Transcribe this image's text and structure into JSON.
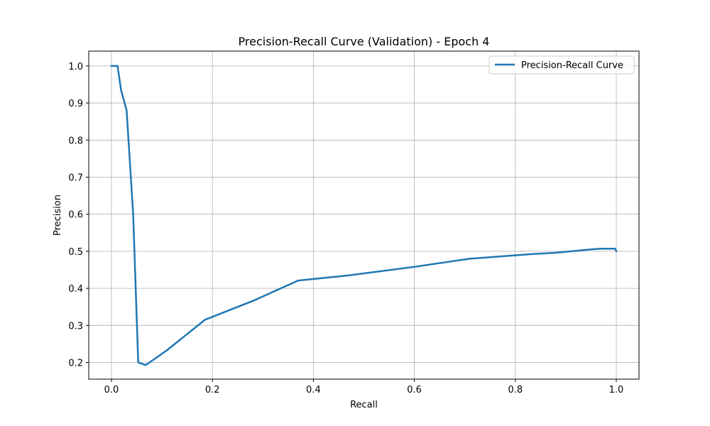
{
  "chart_data": {
    "type": "line",
    "title": "Precision-Recall Curve (Validation) - Epoch 4",
    "xlabel": "Recall",
    "ylabel": "Precision",
    "xlim": [
      -0.045,
      1.045
    ],
    "ylim": [
      0.155,
      1.04
    ],
    "x_ticks": [
      0.0,
      0.2,
      0.4,
      0.6,
      0.8,
      1.0
    ],
    "x_tick_labels": [
      "0.0",
      "0.2",
      "0.4",
      "0.6",
      "0.8",
      "1.0"
    ],
    "y_ticks": [
      0.2,
      0.3,
      0.4,
      0.5,
      0.6,
      0.7,
      0.8,
      0.9,
      1.0
    ],
    "y_tick_labels": [
      "0.2",
      "0.3",
      "0.4",
      "0.5",
      "0.6",
      "0.7",
      "0.8",
      "0.9",
      "1.0"
    ],
    "grid": true,
    "legend_position": "top-right",
    "series": [
      {
        "name": "Precision-Recall Curve",
        "color": "#1f77b4",
        "points": [
          [
            0.0,
            1.0
          ],
          [
            0.012,
            1.0
          ],
          [
            0.019,
            0.935
          ],
          [
            0.03,
            0.88
          ],
          [
            0.043,
            0.6
          ],
          [
            0.053,
            0.2
          ],
          [
            0.068,
            0.193
          ],
          [
            0.11,
            0.233
          ],
          [
            0.185,
            0.315
          ],
          [
            0.28,
            0.366
          ],
          [
            0.37,
            0.421
          ],
          [
            0.47,
            0.435
          ],
          [
            0.6,
            0.458
          ],
          [
            0.71,
            0.48
          ],
          [
            0.84,
            0.493
          ],
          [
            0.88,
            0.496
          ],
          [
            0.95,
            0.505
          ],
          [
            0.97,
            0.507
          ],
          [
            0.998,
            0.507
          ],
          [
            1.0,
            0.5
          ]
        ]
      }
    ]
  }
}
